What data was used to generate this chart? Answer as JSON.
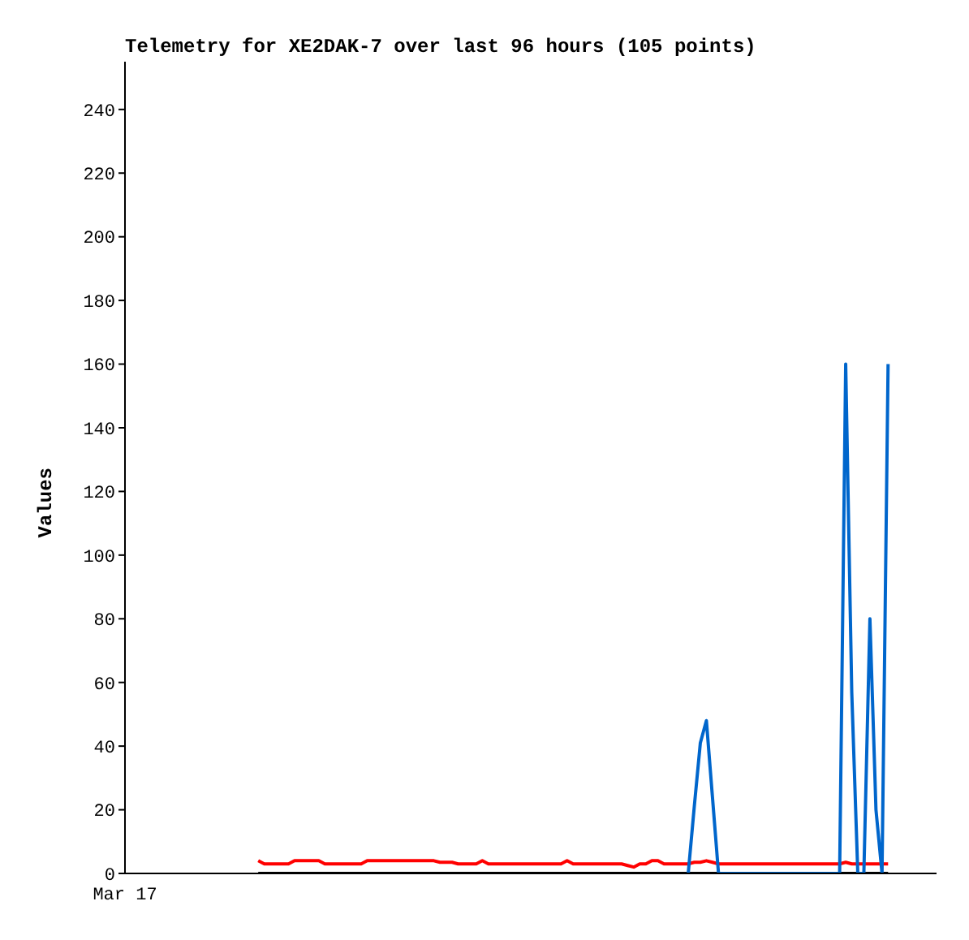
{
  "chart_data": {
    "type": "line",
    "title": "Telemetry for XE2DAK-7 over last 96 hours (105 points)",
    "ylabel": "Values",
    "categories": [
      "Mar 17",
      null,
      null,
      null,
      null,
      null,
      null,
      null,
      null,
      null,
      null,
      null,
      null,
      null,
      null,
      null,
      null,
      null,
      null,
      null,
      null,
      null,
      null,
      null,
      null,
      null,
      null,
      null,
      null,
      null,
      null,
      null,
      null,
      null,
      null,
      null,
      null,
      null,
      null,
      null,
      null,
      null,
      null,
      null,
      null,
      null,
      null,
      null,
      null,
      null,
      null,
      null,
      null,
      null,
      null,
      null,
      null,
      null,
      null,
      null,
      null,
      null,
      null,
      null,
      null,
      null,
      null,
      null,
      null,
      null,
      null,
      null,
      null,
      null,
      null,
      null,
      null,
      null,
      null,
      null,
      null,
      null,
      null,
      null,
      null,
      null,
      null,
      null,
      null,
      null,
      null,
      null,
      null,
      null,
      null,
      null,
      null,
      null,
      null,
      null,
      null,
      null,
      null,
      null,
      null,
      null,
      null,
      null,
      null,
      null,
      null,
      null,
      null,
      null,
      null,
      null,
      null,
      null,
      null,
      null,
      null,
      null,
      null,
      null,
      null,
      null,
      null,
      null,
      null,
      null,
      null,
      null,
      null,
      null,
      null
    ],
    "ylim": [
      0,
      255
    ],
    "yticks": [
      0,
      20,
      40,
      60,
      80,
      100,
      120,
      140,
      160,
      180,
      200,
      220,
      240
    ],
    "marker": "none",
    "line_style": "solid",
    "series": [
      {
        "color": "#000000",
        "values": [
          null,
          null,
          null,
          null,
          null,
          null,
          null,
          null,
          null,
          null,
          null,
          null,
          null,
          null,
          null,
          null,
          null,
          null,
          null,
          null,
          null,
          null,
          0,
          0,
          0,
          0,
          0,
          0,
          0,
          0,
          0,
          0,
          0,
          0,
          0,
          0,
          0,
          0,
          0,
          0,
          0,
          0,
          0,
          0,
          0,
          0,
          0,
          0,
          0,
          0,
          0,
          0,
          0,
          0,
          0,
          0,
          0,
          0,
          0,
          0,
          0,
          0,
          0,
          0,
          0,
          0,
          0,
          0,
          0,
          0,
          0,
          0,
          0,
          0,
          0,
          0,
          0,
          0,
          0,
          0,
          0,
          0,
          0,
          0,
          0,
          0,
          0,
          0,
          0,
          0,
          0,
          0,
          0,
          0,
          0,
          0,
          0,
          0,
          0,
          0,
          0,
          0,
          0,
          0,
          0,
          0,
          0,
          0,
          0,
          0,
          0,
          0,
          0,
          0,
          0,
          0,
          0,
          0,
          0,
          0,
          0,
          0,
          0,
          0,
          0,
          0,
          0,
          null,
          null,
          null,
          null,
          null,
          null,
          null,
          null
        ]
      },
      {
        "color": "#ff0000",
        "values": [
          null,
          null,
          null,
          null,
          null,
          null,
          null,
          null,
          null,
          null,
          null,
          null,
          null,
          null,
          null,
          null,
          null,
          null,
          null,
          null,
          null,
          null,
          4,
          3,
          3,
          3,
          3,
          3,
          4,
          4,
          4,
          4,
          4,
          3,
          3,
          3,
          3,
          3,
          3,
          3,
          4,
          4,
          4,
          4,
          4,
          4,
          4,
          4,
          4,
          4,
          4,
          4,
          3.5,
          3.5,
          3.5,
          3,
          3,
          3,
          3,
          4,
          3,
          3,
          3,
          3,
          3,
          3,
          3,
          3,
          3,
          3,
          3,
          3,
          3,
          4,
          3,
          3,
          3,
          3,
          3,
          3,
          3,
          3,
          3,
          2.5,
          2,
          3,
          3,
          4,
          4,
          3,
          3,
          3,
          3,
          3,
          3.5,
          3.5,
          4,
          3.5,
          3,
          3,
          3,
          3,
          3,
          3,
          3,
          3,
          3,
          3,
          3,
          3,
          3,
          3,
          3,
          3,
          3,
          3,
          3,
          3,
          3,
          3.5,
          3,
          3,
          3,
          3,
          3,
          3,
          3,
          null,
          null,
          null,
          null,
          null,
          null,
          null,
          null
        ]
      },
      {
        "color": "#0066cc",
        "values": [
          null,
          null,
          null,
          null,
          null,
          null,
          null,
          null,
          null,
          null,
          null,
          null,
          null,
          null,
          null,
          null,
          null,
          null,
          null,
          null,
          null,
          null,
          null,
          null,
          null,
          null,
          null,
          null,
          null,
          null,
          null,
          null,
          null,
          null,
          null,
          null,
          null,
          null,
          null,
          null,
          null,
          null,
          null,
          null,
          null,
          null,
          null,
          null,
          null,
          null,
          null,
          null,
          null,
          null,
          null,
          null,
          null,
          null,
          null,
          null,
          null,
          null,
          null,
          null,
          null,
          null,
          null,
          null,
          null,
          null,
          null,
          null,
          null,
          null,
          null,
          null,
          null,
          null,
          null,
          null,
          null,
          null,
          null,
          null,
          null,
          null,
          null,
          null,
          null,
          null,
          null,
          null,
          null,
          0,
          21,
          41,
          48,
          24,
          0,
          0,
          0,
          0,
          0,
          0,
          0,
          0,
          0,
          0,
          0,
          0,
          0,
          0,
          0,
          0,
          0,
          0,
          0,
          0,
          0,
          160,
          57,
          0,
          0,
          80,
          20,
          0,
          160,
          null,
          null,
          null,
          null,
          null,
          null,
          null,
          null
        ]
      }
    ]
  }
}
